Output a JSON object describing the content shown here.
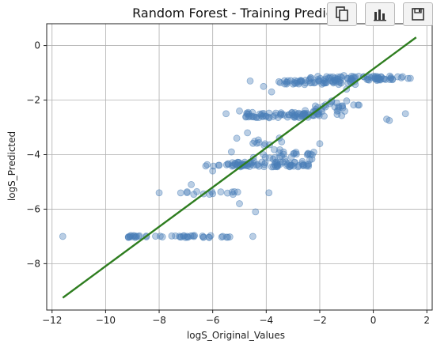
{
  "chart_data": {
    "type": "scatter",
    "title": "Random Forest - Training Predict",
    "xlabel": "logS_Original_Values",
    "ylabel": "logS_Predicted",
    "xlim": [
      -12.2,
      2.2
    ],
    "ylim": [
      -9.7,
      0.8
    ],
    "xticks": [
      -12,
      -10,
      -8,
      -6,
      -4,
      -2,
      0,
      2
    ],
    "yticks": [
      0,
      -2,
      -4,
      -6,
      -8
    ],
    "xtick_labels": [
      "−12",
      "−10",
      "−8",
      "−6",
      "−4",
      "−2",
      "0",
      "2"
    ],
    "ytick_labels": [
      "0",
      "−2",
      "−4",
      "−6",
      "−8"
    ],
    "grid": true,
    "point_color": "#4a7fb8",
    "line_color": "#2e7d1f",
    "trend_line": {
      "x": [
        -11.6,
        1.6
      ],
      "y": [
        -9.25,
        0.3
      ]
    },
    "clusters": [
      {
        "xr": [
          -2.4,
          1.4
        ],
        "yc": -1.2,
        "n": 70,
        "spread": 0.08
      },
      {
        "xr": [
          -3.6,
          -0.6
        ],
        "yc": -1.35,
        "n": 55,
        "spread": 0.08
      },
      {
        "xr": [
          -4.8,
          -2.0
        ],
        "yc": -2.55,
        "n": 70,
        "spread": 0.1
      },
      {
        "xr": [
          -2.8,
          -1.0
        ],
        "yc": -2.4,
        "n": 25,
        "spread": 0.2
      },
      {
        "xr": [
          -5.5,
          -2.3
        ],
        "yc": -4.35,
        "n": 65,
        "spread": 0.1
      },
      {
        "xr": [
          -4.5,
          -2.2
        ],
        "yc": -4.05,
        "n": 25,
        "spread": 0.15
      },
      {
        "xr": [
          -4.6,
          -3.4
        ],
        "yc": -3.6,
        "n": 12,
        "spread": 0.25
      },
      {
        "xr": [
          -6.4,
          -4.6
        ],
        "yc": -4.38,
        "n": 20,
        "spread": 0.05
      },
      {
        "xr": [
          -7.2,
          -5.0
        ],
        "yc": -5.4,
        "n": 15,
        "spread": 0.06
      },
      {
        "xr": [
          -9.2,
          -5.0
        ],
        "yc": -7.0,
        "n": 45,
        "spread": 0.04
      },
      {
        "xr": [
          -2.0,
          -0.5
        ],
        "yc": -2.15,
        "n": 12,
        "spread": 0.15
      }
    ],
    "points": [
      {
        "x": -11.6,
        "y": -7.0
      },
      {
        "x": -8.0,
        "y": -5.4
      },
      {
        "x": -4.5,
        "y": -7.0
      },
      {
        "x": -4.4,
        "y": -6.1
      },
      {
        "x": -3.9,
        "y": -5.4
      },
      {
        "x": -5.0,
        "y": -5.8
      },
      {
        "x": 1.2,
        "y": -2.5
      },
      {
        "x": 0.5,
        "y": -2.7
      },
      {
        "x": 0.6,
        "y": -2.75
      },
      {
        "x": -4.6,
        "y": -1.3
      },
      {
        "x": -4.1,
        "y": -1.5
      },
      {
        "x": -3.8,
        "y": -1.7
      },
      {
        "x": -5.5,
        "y": -2.5
      },
      {
        "x": -5.0,
        "y": -2.4
      },
      {
        "x": -4.7,
        "y": -3.2
      },
      {
        "x": -5.1,
        "y": -3.4
      },
      {
        "x": -2.0,
        "y": -3.6
      },
      {
        "x": -6.8,
        "y": -5.1
      },
      {
        "x": -5.3,
        "y": -3.9
      },
      {
        "x": -6.0,
        "y": -4.6
      },
      {
        "x": -1.0,
        "y": -1.6
      },
      {
        "x": -1.1,
        "y": -1.1
      }
    ]
  },
  "toolbar": {
    "buttons": [
      {
        "name": "copy-button",
        "icon": "copy-icon"
      },
      {
        "name": "chart-button",
        "icon": "bar-chart-icon"
      },
      {
        "name": "save-button",
        "icon": "save-icon"
      }
    ]
  }
}
